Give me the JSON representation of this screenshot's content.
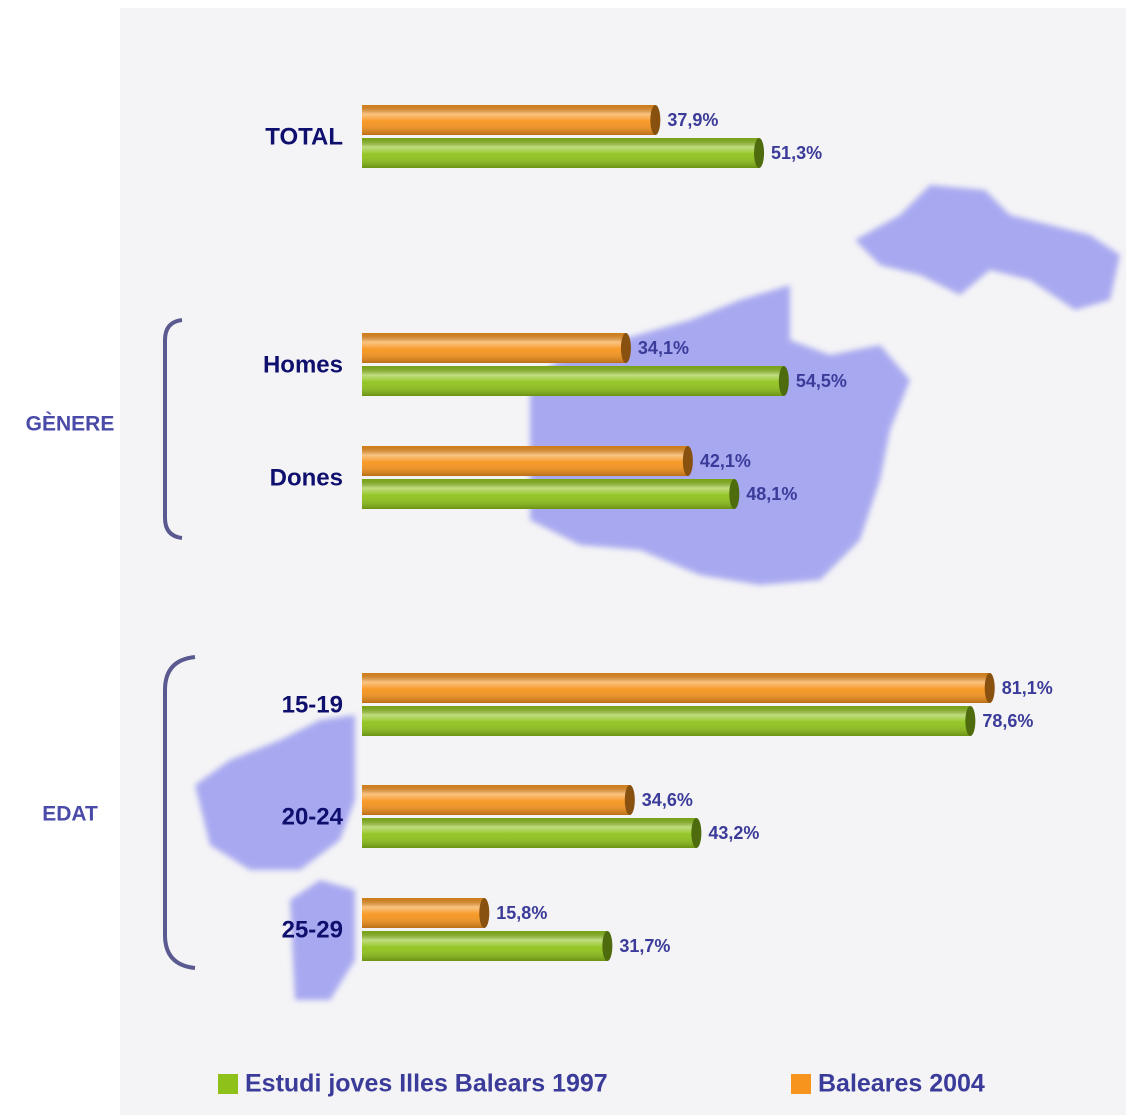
{
  "chart_data": {
    "type": "bar",
    "orientation": "horizontal",
    "categories": [
      "TOTAL",
      "Homes",
      "Dones",
      "15-19",
      "20-24",
      "25-29"
    ],
    "group_labels": [
      "GÈNERE",
      "EDAT"
    ],
    "series": [
      {
        "name": "Estudi joves Illes Balears 1997",
        "color": "#8ec21a",
        "values": [
          51.3,
          54.5,
          48.1,
          78.6,
          43.2,
          31.7
        ],
        "value_labels": [
          "51,3%",
          "54,5%",
          "48,1%",
          "78,6%",
          "43,2%",
          "31,7%"
        ]
      },
      {
        "name": "Baleares 2004",
        "color": "#f7941d",
        "values": [
          37.9,
          34.1,
          42.1,
          81.1,
          34.6,
          15.8
        ],
        "value_labels": [
          "37,9%",
          "34,1%",
          "42,1%",
          "81,1%",
          "34,6%",
          "15,8%"
        ]
      }
    ],
    "legend": "bottom"
  }
}
